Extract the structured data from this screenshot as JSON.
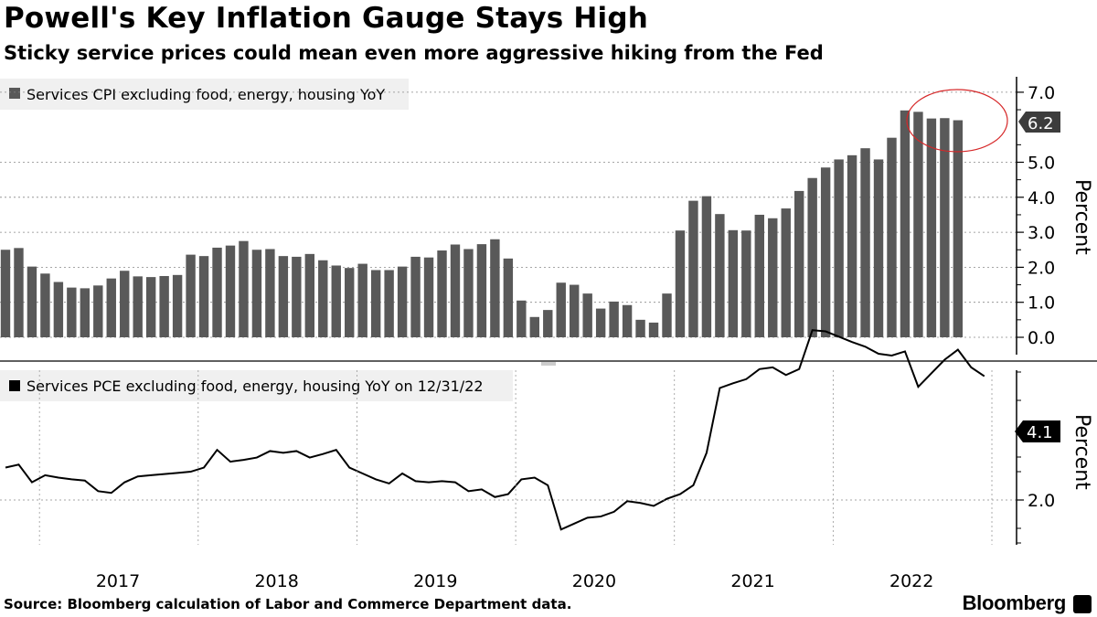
{
  "header": {
    "title": "Powell's Key Inflation Gauge Stays High",
    "subtitle": "Sticky service prices could mean even more aggressive hiking from the Fed"
  },
  "footer": {
    "source": "Source: Bloomberg calculation of Labor and Commerce Department data.",
    "brand": "Bloomberg"
  },
  "colors": {
    "bar": "#595959",
    "line": "#000000",
    "highlight": "#d62728",
    "legend_bg": "#f0f0f0"
  },
  "chart_data": [
    {
      "type": "bar",
      "legend": "Services CPI excluding food, energy, housing YoY",
      "ylabel": "Percent",
      "yticks": [
        "0.0",
        "1.0",
        "2.0",
        "3.0",
        "4.0",
        "5.0",
        "7.0"
      ],
      "ylim": [
        -0.2,
        7.4
      ],
      "last_value_label": "6.2",
      "x_start": "2016-10",
      "values": [
        2.5,
        2.55,
        2.02,
        1.82,
        1.58,
        1.42,
        1.4,
        1.48,
        1.68,
        1.9,
        1.74,
        1.72,
        1.75,
        1.78,
        2.36,
        2.32,
        2.56,
        2.62,
        2.75,
        2.5,
        2.52,
        2.32,
        2.3,
        2.38,
        2.2,
        2.05,
        1.98,
        2.1,
        1.92,
        1.92,
        2.02,
        2.3,
        2.28,
        2.48,
        2.65,
        2.52,
        2.66,
        2.8,
        2.25,
        1.05,
        0.58,
        0.78,
        1.56,
        1.5,
        1.25,
        0.82,
        1.02,
        0.92,
        0.5,
        0.42,
        1.25,
        3.05,
        3.9,
        4.03,
        3.52,
        3.06,
        3.05,
        3.5,
        3.4,
        3.68,
        4.18,
        4.55,
        4.85,
        5.08,
        5.2,
        5.4,
        5.08,
        5.7,
        6.48,
        6.44,
        6.25,
        6.26,
        6.2
      ],
      "highlight": "circle around the last 6 months"
    },
    {
      "type": "line",
      "legend": "Services PCE excluding food, energy, housing YoY on 12/31/22",
      "ylabel": "Percent",
      "yticks": [
        "2.0"
      ],
      "ylim": [
        1.3,
        5.6
      ],
      "last_value_label": "4.1",
      "x_start": "2016-10",
      "values": [
        2.55,
        2.6,
        2.3,
        2.42,
        2.38,
        2.35,
        2.33,
        2.15,
        2.12,
        2.3,
        2.4,
        2.42,
        2.44,
        2.46,
        2.48,
        2.55,
        2.85,
        2.65,
        2.68,
        2.72,
        2.83,
        2.8,
        2.83,
        2.72,
        2.78,
        2.85,
        2.55,
        2.45,
        2.35,
        2.28,
        2.45,
        2.32,
        2.3,
        2.32,
        2.3,
        2.15,
        2.18,
        2.05,
        2.1,
        2.35,
        2.38,
        2.25,
        1.5,
        1.6,
        1.7,
        1.72,
        1.8,
        1.98,
        1.95,
        1.9,
        2.02,
        2.1,
        2.25,
        2.8,
        3.9,
        3.98,
        4.05,
        4.22,
        4.25,
        4.12,
        4.22,
        4.88,
        4.86,
        4.77,
        4.68,
        4.6,
        4.48,
        4.45,
        4.52,
        3.92,
        4.15,
        4.38,
        4.55,
        4.25,
        4.1
      ]
    }
  ],
  "x_axis": {
    "labels": [
      "2017",
      "2018",
      "2019",
      "2020",
      "2021",
      "2022"
    ]
  }
}
